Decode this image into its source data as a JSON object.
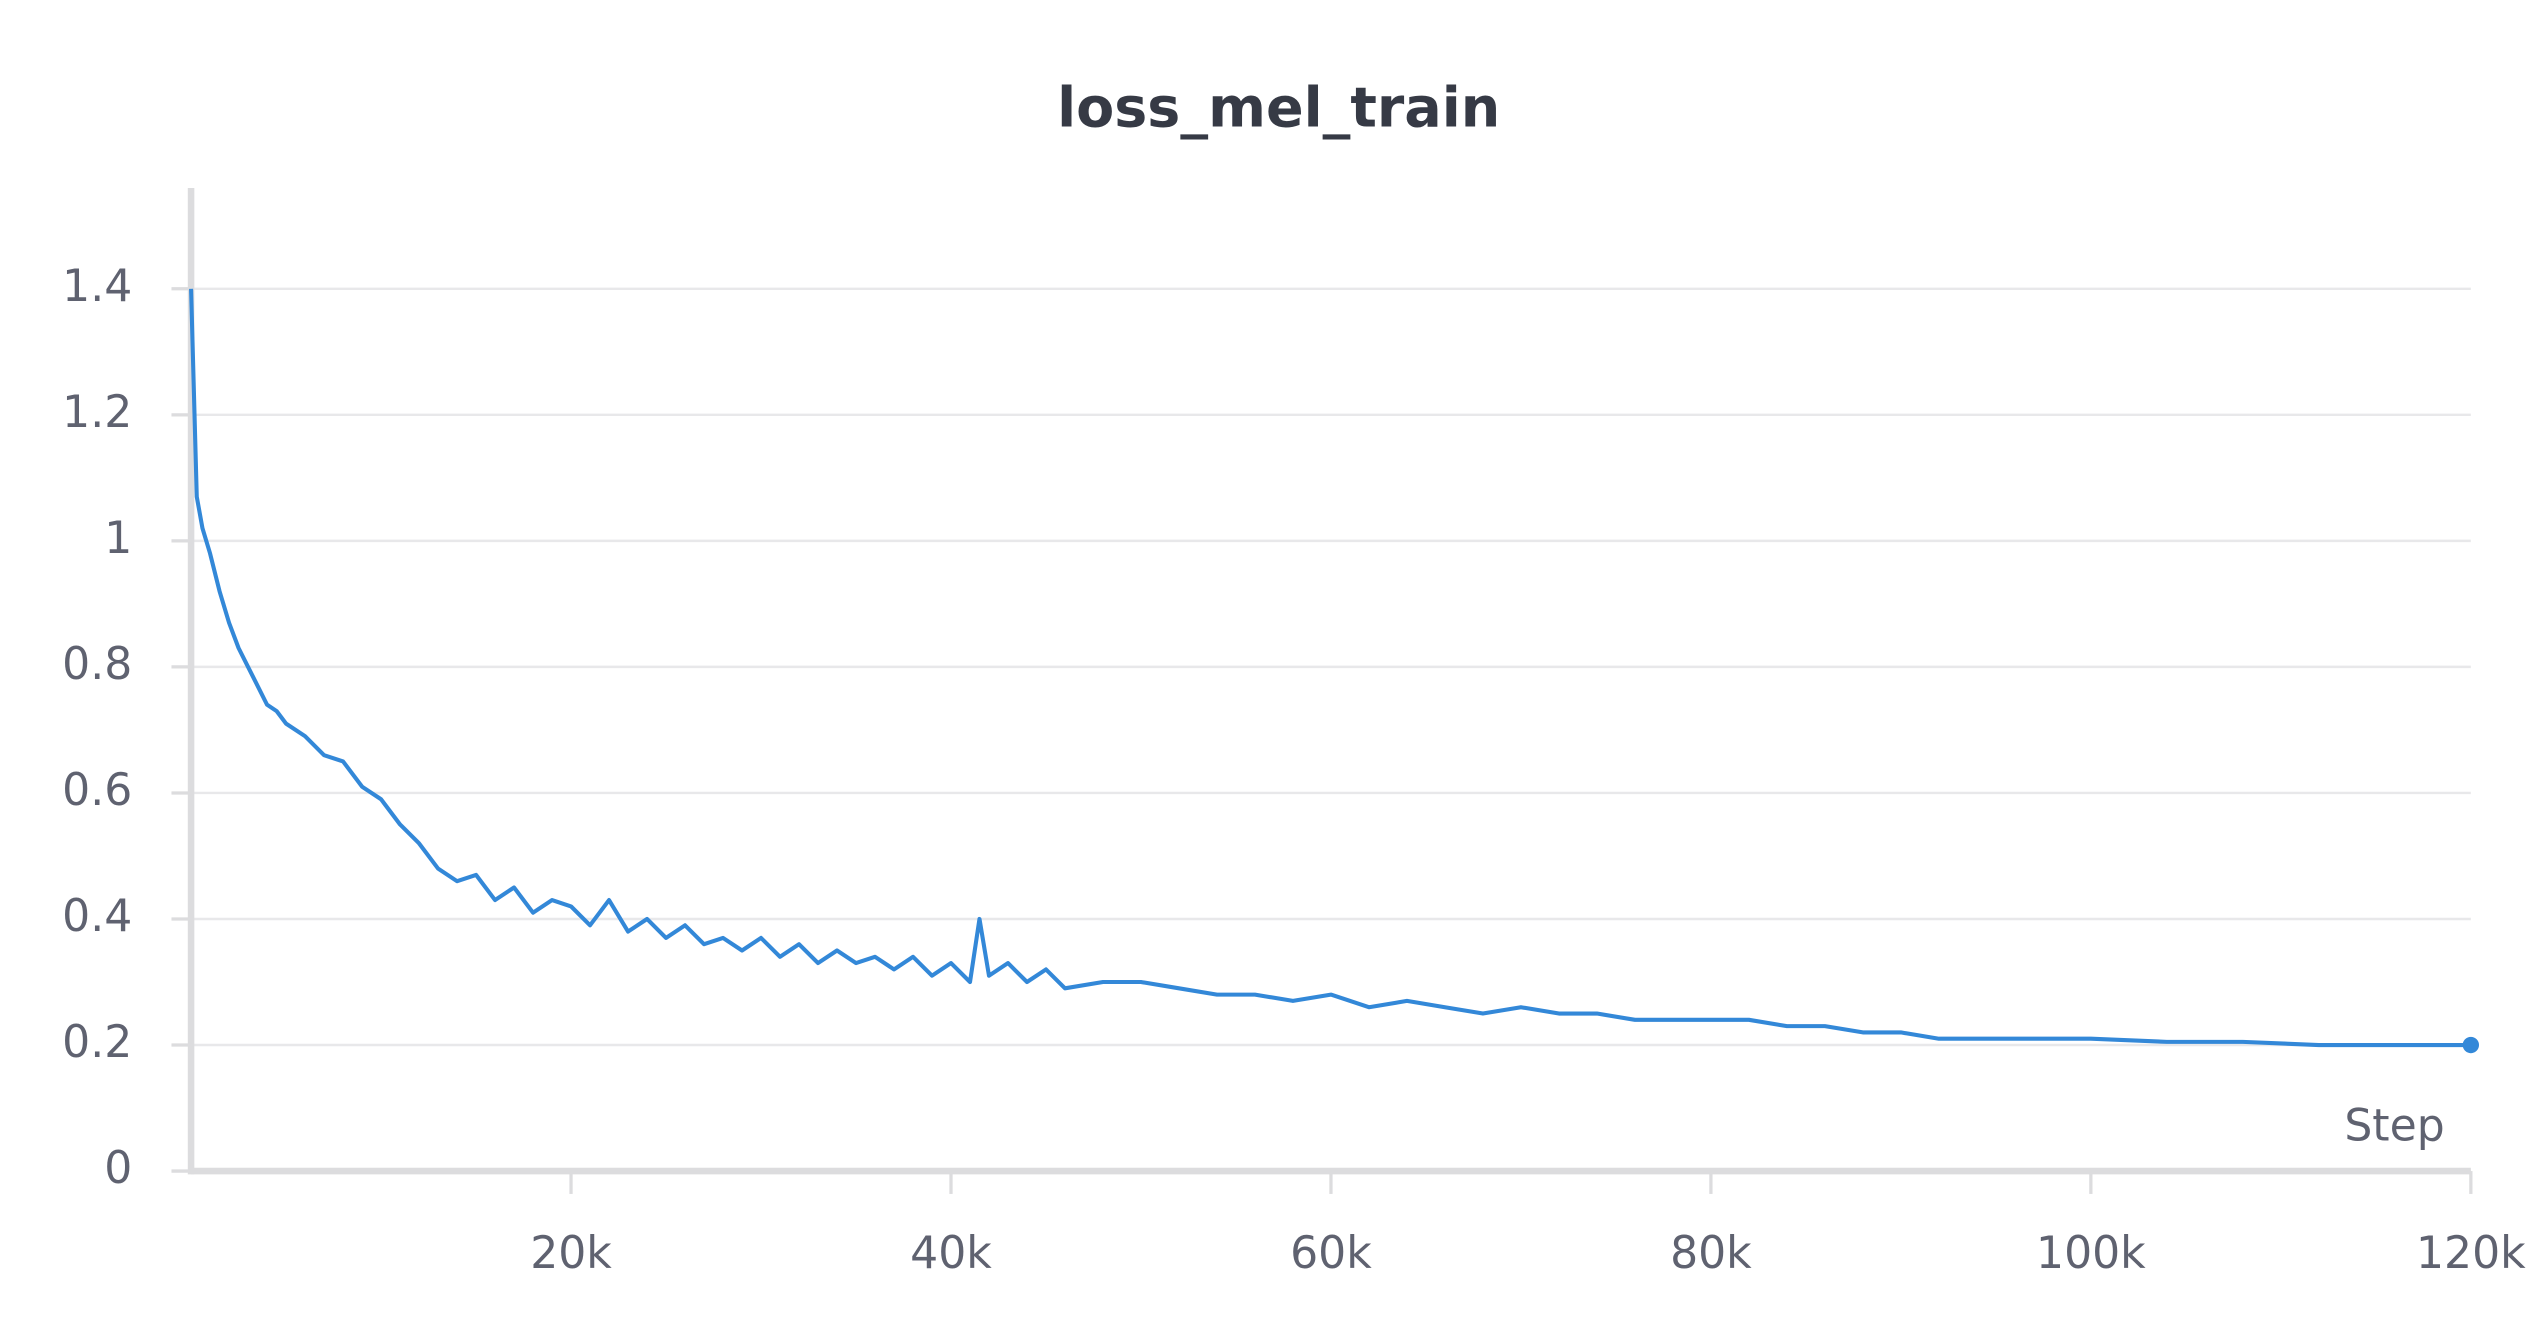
{
  "chart_data": {
    "type": "line",
    "title": "loss_mel_train",
    "x_label": "Step",
    "xlim": [
      0,
      120000
    ],
    "ylim": [
      0,
      1.56
    ],
    "xticks": [
      {
        "value": 20000,
        "label": "20k"
      },
      {
        "value": 40000,
        "label": "40k"
      },
      {
        "value": 60000,
        "label": "60k"
      },
      {
        "value": 80000,
        "label": "80k"
      },
      {
        "value": 100000,
        "label": "100k"
      },
      {
        "value": 120000,
        "label": "120k"
      }
    ],
    "yticks": [
      0,
      0.2,
      0.4,
      0.6,
      0.8,
      1,
      1.2,
      1.4
    ],
    "grid": true,
    "series": [
      {
        "name": "loss_mel_train",
        "color": "#3388d8",
        "x": [
          0,
          300,
          600,
          1000,
          1500,
          2000,
          2500,
          3000,
          3500,
          4000,
          4500,
          5000,
          6000,
          7000,
          8000,
          9000,
          10000,
          11000,
          12000,
          13000,
          14000,
          15000,
          16000,
          17000,
          18000,
          19000,
          20000,
          21000,
          22000,
          23000,
          24000,
          25000,
          26000,
          27000,
          28000,
          29000,
          30000,
          31000,
          32000,
          33000,
          34000,
          35000,
          36000,
          37000,
          38000,
          39000,
          40000,
          41000,
          41500,
          42000,
          43000,
          44000,
          45000,
          46000,
          48000,
          50000,
          52000,
          54000,
          56000,
          58000,
          60000,
          62000,
          64000,
          66000,
          68000,
          70000,
          72000,
          74000,
          76000,
          78000,
          80000,
          82000,
          84000,
          86000,
          88000,
          90000,
          92000,
          94000,
          96000,
          98000,
          100000,
          104000,
          108000,
          112000,
          116000,
          120000
        ],
        "values": [
          1.4,
          1.07,
          1.02,
          0.98,
          0.92,
          0.87,
          0.83,
          0.8,
          0.77,
          0.74,
          0.73,
          0.71,
          0.69,
          0.66,
          0.65,
          0.61,
          0.59,
          0.55,
          0.52,
          0.48,
          0.46,
          0.47,
          0.43,
          0.45,
          0.41,
          0.43,
          0.42,
          0.39,
          0.43,
          0.38,
          0.4,
          0.37,
          0.39,
          0.36,
          0.37,
          0.35,
          0.37,
          0.34,
          0.36,
          0.33,
          0.35,
          0.33,
          0.34,
          0.32,
          0.34,
          0.31,
          0.33,
          0.3,
          0.4,
          0.31,
          0.33,
          0.3,
          0.32,
          0.29,
          0.3,
          0.3,
          0.29,
          0.28,
          0.28,
          0.27,
          0.28,
          0.26,
          0.27,
          0.26,
          0.25,
          0.26,
          0.25,
          0.25,
          0.24,
          0.24,
          0.24,
          0.24,
          0.23,
          0.23,
          0.22,
          0.22,
          0.21,
          0.21,
          0.21,
          0.21,
          0.21,
          0.205,
          0.205,
          0.2,
          0.2,
          0.2
        ]
      }
    ]
  }
}
